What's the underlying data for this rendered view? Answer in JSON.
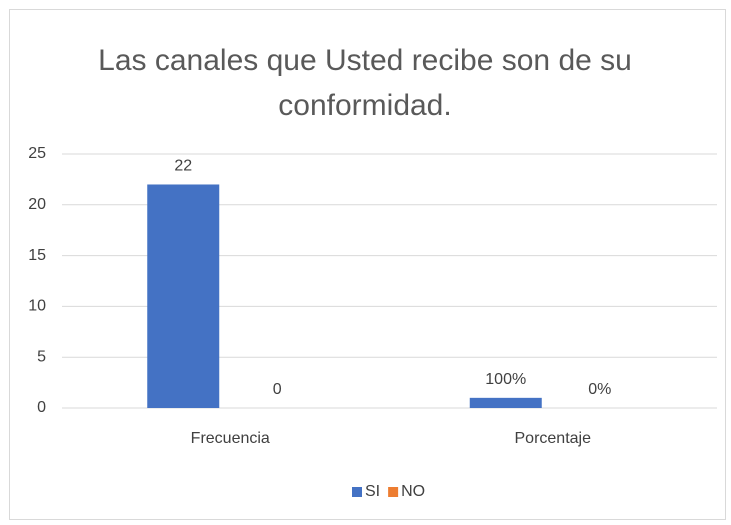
{
  "chart_data": {
    "type": "bar",
    "title": "Las canales que Usted recibe son de su conformidad.",
    "categories": [
      "Frecuencia",
      "Porcentaje"
    ],
    "series": [
      {
        "name": "SI",
        "color": "#4472c4",
        "values": [
          22,
          1
        ],
        "value_labels": [
          "22",
          "100%"
        ]
      },
      {
        "name": "NO",
        "color": "#ed7d31",
        "values": [
          0,
          0
        ],
        "value_labels": [
          "0",
          "0%"
        ]
      }
    ],
    "ylim": [
      0,
      25
    ],
    "yticks": [
      0,
      5,
      10,
      15,
      20,
      25
    ],
    "grid": true,
    "legend": "bottom"
  }
}
